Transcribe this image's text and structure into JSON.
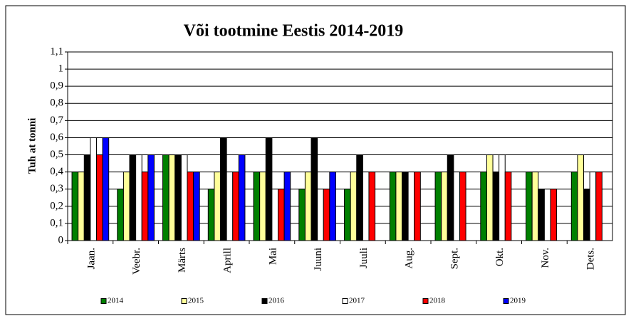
{
  "chart_data": {
    "type": "bar",
    "title": "Või tootmine  Eestis 2014-2019",
    "y_label": "Tuh at tonni",
    "categories": [
      "Jaan.",
      "Veebr.",
      "Märts",
      "Aprill",
      "Mai",
      "Juuni",
      "Juuli",
      "Aug.",
      "Sept.",
      "Okt.",
      "Nov.",
      "Dets."
    ],
    "series": [
      {
        "name": "2014",
        "color": "#008000",
        "values": [
          0.4,
          0.3,
          0.5,
          0.3,
          0.4,
          0.3,
          0.3,
          0.4,
          0.4,
          0.4,
          0.4,
          0.4
        ]
      },
      {
        "name": "2015",
        "color": "#ffff99",
        "values": [
          0.4,
          0.4,
          0.5,
          0.4,
          0.4,
          0.4,
          0.4,
          0.4,
          0.4,
          0.5,
          0.4,
          0.5
        ]
      },
      {
        "name": "2016",
        "color": "#000000",
        "values": [
          0.5,
          0.5,
          0.5,
          0.6,
          0.6,
          0.6,
          0.5,
          0.4,
          0.5,
          0.4,
          0.3,
          0.3
        ]
      },
      {
        "name": "2017",
        "color": "#ffffff",
        "values": [
          0.6,
          0.5,
          0.5,
          0.4,
          0.3,
          0.3,
          0.4,
          0.4,
          0.4,
          0.5,
          0.3,
          0.4
        ]
      },
      {
        "name": "2018",
        "color": "#ff0000",
        "values": [
          0.5,
          0.4,
          0.4,
          0.4,
          0.3,
          0.3,
          0.4,
          0.4,
          0.4,
          0.4,
          0.3,
          0.4
        ]
      },
      {
        "name": "2019",
        "color": "#0000ff",
        "values": [
          0.6,
          0.5,
          0.4,
          0.5,
          0.4,
          0.4,
          null,
          null,
          null,
          null,
          null,
          null
        ]
      }
    ],
    "ylim": [
      0,
      1.1
    ],
    "yticks": [
      0,
      {
        "value": 0.1,
        "label": "0,1"
      },
      {
        "value": 0.2,
        "label": "0,2"
      },
      {
        "value": 0.3,
        "label": "0,3"
      },
      {
        "value": 0.4,
        "label": "0,4"
      },
      {
        "value": 0.5,
        "label": "0,5"
      },
      {
        "value": 0.6,
        "label": "0,6"
      },
      {
        "value": 0.7,
        "label": "0,7"
      },
      {
        "value": 0.8,
        "label": "0,8"
      },
      {
        "value": 0.9,
        "label": "0,9"
      },
      1,
      {
        "value": 1.1,
        "label": "1,1"
      }
    ],
    "grid": true,
    "legend": "bottom"
  }
}
